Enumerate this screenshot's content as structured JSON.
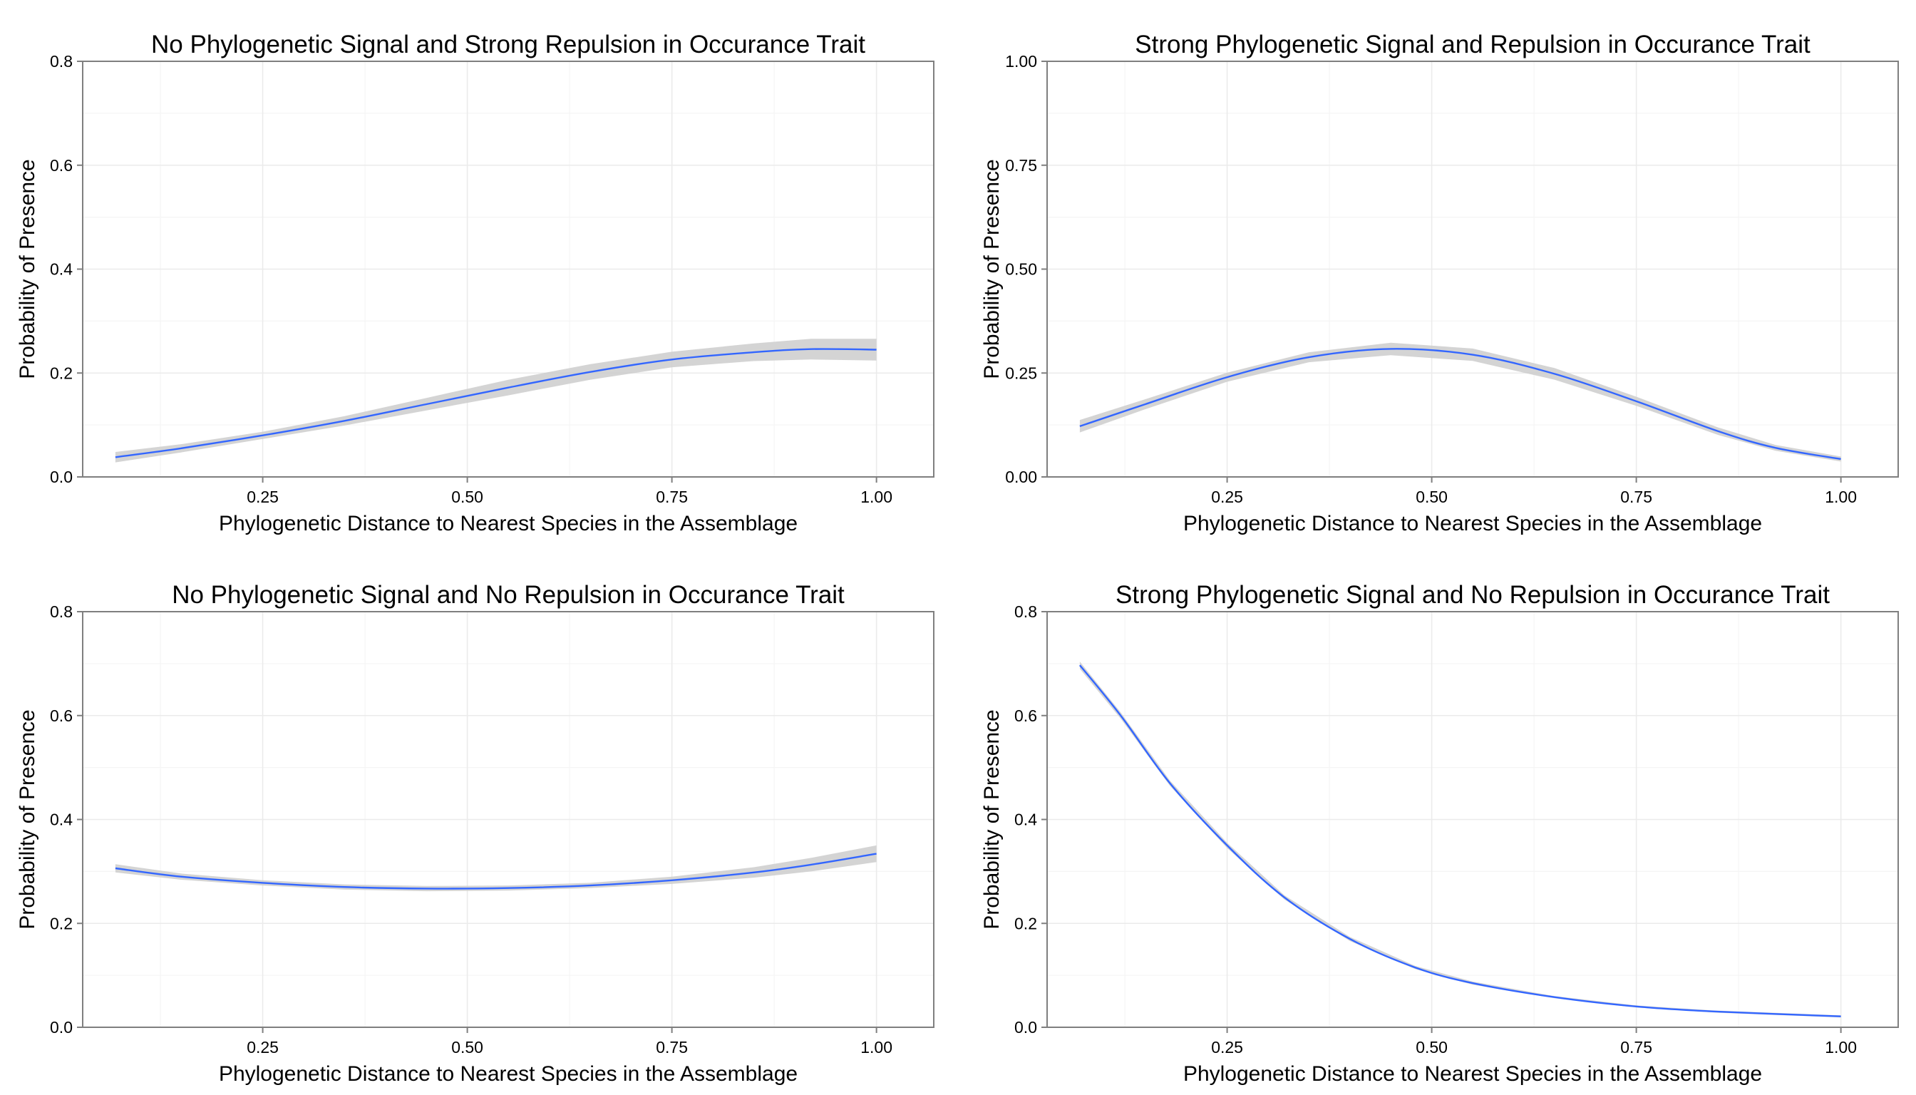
{
  "figure": {
    "colors": {
      "line": "#3366FF",
      "ribbon": "#cccccc",
      "panel_border": "#7f7f7f",
      "grid": "#ebebeb"
    }
  },
  "chart_data": [
    {
      "type": "line",
      "title": "No Phylogenetic Signal and Strong Repulsion in Occurance Trait",
      "xlabel": "Phylogenetic Distance to Nearest Species in the Assemblage",
      "ylabel": "Probability of Presence",
      "xlim": [
        0.03,
        1.07
      ],
      "ylim": [
        0,
        0.8
      ],
      "xticks": [
        0.25,
        0.5,
        0.75,
        1.0
      ],
      "xtick_labels": [
        "0.25",
        "0.50",
        "0.75",
        "1.00"
      ],
      "yticks": [
        0,
        0.2,
        0.4,
        0.6,
        0.8
      ],
      "ytick_labels": [
        "0.0",
        "0.2",
        "0.4",
        "0.6",
        "0.8"
      ],
      "grid": true,
      "x": [
        0.07,
        0.15,
        0.25,
        0.35,
        0.45,
        0.55,
        0.65,
        0.75,
        0.85,
        0.92,
        1.0
      ],
      "y": [
        0.038,
        0.055,
        0.08,
        0.108,
        0.14,
        0.172,
        0.202,
        0.226,
        0.24,
        0.246,
        0.245
      ],
      "ymin": [
        0.028,
        0.047,
        0.073,
        0.099,
        0.128,
        0.157,
        0.187,
        0.211,
        0.223,
        0.226,
        0.224
      ],
      "ymax": [
        0.048,
        0.063,
        0.087,
        0.117,
        0.152,
        0.187,
        0.217,
        0.241,
        0.257,
        0.266,
        0.266
      ]
    },
    {
      "type": "line",
      "title": "Strong Phylogenetic Signal and Repulsion in Occurance Trait",
      "xlabel": "Phylogenetic Distance to Nearest Species in the Assemblage",
      "ylabel": "Probability of Presence",
      "xlim": [
        0.03,
        1.07
      ],
      "ylim": [
        0,
        1.0
      ],
      "xticks": [
        0.25,
        0.5,
        0.75,
        1.0
      ],
      "xtick_labels": [
        "0.25",
        "0.50",
        "0.75",
        "1.00"
      ],
      "yticks": [
        0,
        0.25,
        0.5,
        0.75,
        1.0
      ],
      "ytick_labels": [
        "0.00",
        "0.25",
        "0.50",
        "0.75",
        "1.00"
      ],
      "grid": true,
      "x": [
        0.07,
        0.15,
        0.25,
        0.35,
        0.45,
        0.55,
        0.65,
        0.75,
        0.85,
        0.92,
        1.0
      ],
      "y": [
        0.122,
        0.175,
        0.24,
        0.288,
        0.308,
        0.294,
        0.248,
        0.182,
        0.11,
        0.07,
        0.043
      ],
      "ymin": [
        0.107,
        0.163,
        0.229,
        0.276,
        0.293,
        0.279,
        0.234,
        0.171,
        0.101,
        0.063,
        0.037
      ],
      "ymax": [
        0.137,
        0.187,
        0.251,
        0.3,
        0.323,
        0.309,
        0.262,
        0.193,
        0.119,
        0.077,
        0.049
      ]
    },
    {
      "type": "line",
      "title": "No Phylogenetic Signal and No Repulsion in Occurance Trait",
      "xlabel": "Phylogenetic Distance to Nearest Species in the Assemblage",
      "ylabel": "Probability of Presence",
      "xlim": [
        0.03,
        1.07
      ],
      "ylim": [
        0,
        0.8
      ],
      "xticks": [
        0.25,
        0.5,
        0.75,
        1.0
      ],
      "xtick_labels": [
        "0.25",
        "0.50",
        "0.75",
        "1.00"
      ],
      "yticks": [
        0,
        0.2,
        0.4,
        0.6,
        0.8
      ],
      "ytick_labels": [
        "0.0",
        "0.2",
        "0.4",
        "0.6",
        "0.8"
      ],
      "grid": true,
      "x": [
        0.07,
        0.15,
        0.25,
        0.35,
        0.45,
        0.55,
        0.65,
        0.75,
        0.85,
        0.92,
        1.0
      ],
      "y": [
        0.306,
        0.29,
        0.278,
        0.27,
        0.267,
        0.268,
        0.273,
        0.283,
        0.298,
        0.313,
        0.334
      ],
      "ymin": [
        0.298,
        0.284,
        0.273,
        0.265,
        0.262,
        0.263,
        0.268,
        0.276,
        0.288,
        0.3,
        0.318
      ],
      "ymax": [
        0.314,
        0.296,
        0.283,
        0.275,
        0.272,
        0.273,
        0.278,
        0.29,
        0.308,
        0.326,
        0.35
      ]
    },
    {
      "type": "line",
      "title": "Strong Phylogenetic Signal and No Repulsion in Occurance Trait",
      "xlabel": "Phylogenetic Distance to Nearest Species in the Assemblage",
      "ylabel": "Probability of Presence",
      "xlim": [
        0.03,
        1.07
      ],
      "ylim": [
        0,
        0.8
      ],
      "xticks": [
        0.25,
        0.5,
        0.75,
        1.0
      ],
      "xtick_labels": [
        "0.25",
        "0.50",
        "0.75",
        "1.00"
      ],
      "yticks": [
        0,
        0.2,
        0.4,
        0.6,
        0.8
      ],
      "ytick_labels": [
        "0.0",
        "0.2",
        "0.4",
        "0.6",
        "0.8"
      ],
      "grid": true,
      "x": [
        0.07,
        0.12,
        0.18,
        0.25,
        0.32,
        0.4,
        0.48,
        0.55,
        0.65,
        0.75,
        0.85,
        1.0
      ],
      "y": [
        0.697,
        0.6,
        0.47,
        0.35,
        0.25,
        0.17,
        0.115,
        0.085,
        0.058,
        0.04,
        0.03,
        0.021
      ],
      "ymin": [
        0.69,
        0.594,
        0.465,
        0.345,
        0.246,
        0.166,
        0.112,
        0.082,
        0.056,
        0.038,
        0.028,
        0.019
      ],
      "ymax": [
        0.704,
        0.606,
        0.475,
        0.355,
        0.254,
        0.174,
        0.118,
        0.088,
        0.06,
        0.042,
        0.032,
        0.023
      ]
    }
  ]
}
